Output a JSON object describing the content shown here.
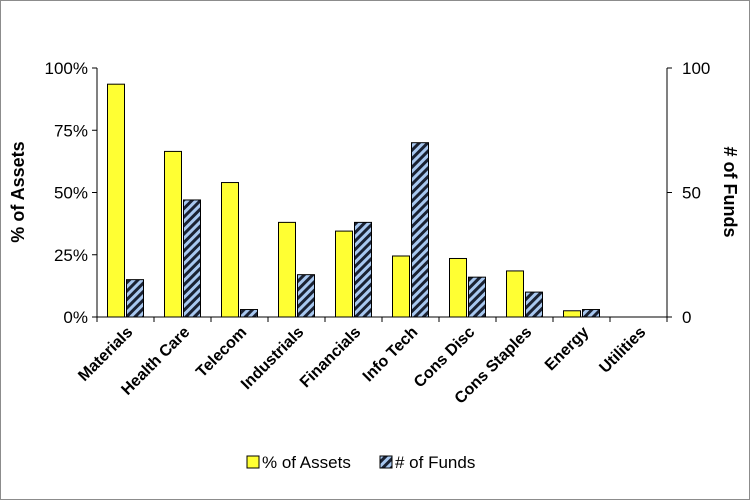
{
  "chart_data": {
    "type": "bar",
    "categories": [
      "Materials",
      "Health Care",
      "Telecom",
      "Industrials",
      "Financials",
      "Info Tech",
      "Cons Disc",
      "Cons Staples",
      "Energy",
      "Utilities"
    ],
    "series": [
      {
        "name": "% of Assets",
        "axis": "left",
        "color": "#ffff33",
        "values": [
          93.5,
          66.5,
          54,
          38,
          34.5,
          24.5,
          23.5,
          18.5,
          2.5,
          0
        ]
      },
      {
        "name": "# of Funds",
        "axis": "right",
        "color": "#a8c8f0",
        "pattern": "hatched-dark-navy",
        "values": [
          15,
          47,
          3,
          17,
          38,
          70,
          16,
          10,
          3,
          0
        ]
      }
    ],
    "y_left": {
      "label": "% of Assets",
      "ylim": [
        0,
        100
      ],
      "ticks": [
        "0%",
        "25%",
        "50%",
        "75%",
        "100%"
      ]
    },
    "y_right": {
      "label": "# of Funds",
      "ylim": [
        0,
        100
      ],
      "ticks": [
        "0",
        "50",
        "100"
      ]
    },
    "grid": false,
    "legend": "bottom"
  }
}
